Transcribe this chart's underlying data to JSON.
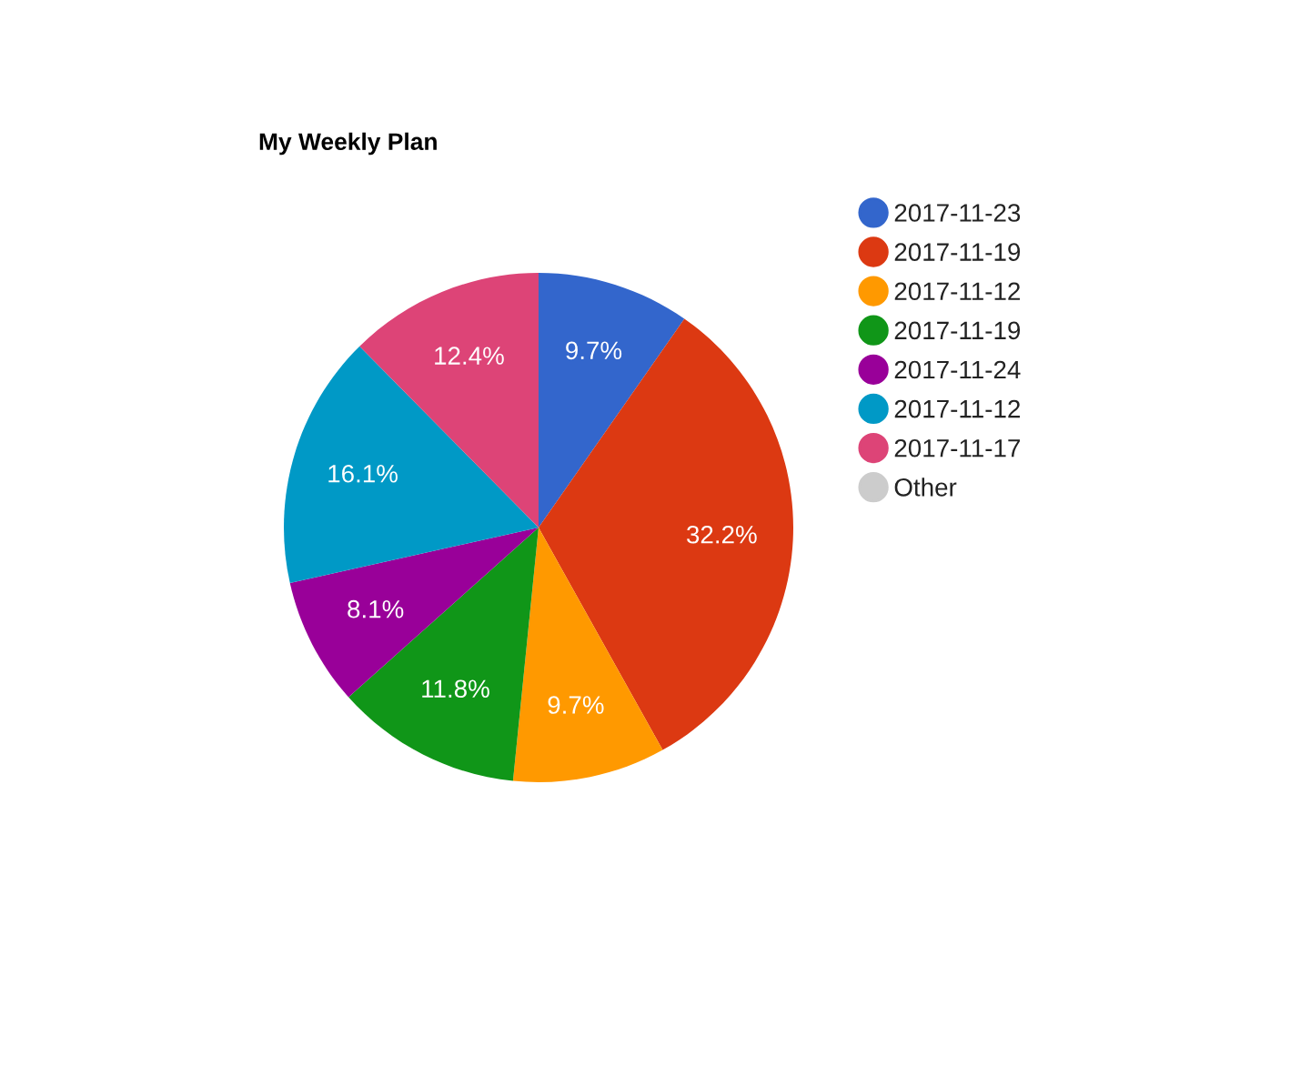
{
  "chart_data": {
    "type": "pie",
    "title": "My Weekly Plan",
    "categories": [
      "2017-11-23",
      "2017-11-19",
      "2017-11-12",
      "2017-11-19",
      "2017-11-24",
      "2017-11-12",
      "2017-11-17",
      "Other"
    ],
    "values": [
      9.7,
      32.2,
      9.7,
      11.8,
      8.1,
      16.1,
      12.4,
      0
    ],
    "colors": [
      "#3366cc",
      "#dc3912",
      "#ff9900",
      "#109618",
      "#990099",
      "#0099c6",
      "#dd4477",
      "#cccccc"
    ],
    "value_labels": [
      "9.7%",
      "32.2%",
      "9.7%",
      "11.8%",
      "8.1%",
      "16.1%",
      "12.4%",
      null
    ],
    "legend": "right"
  }
}
